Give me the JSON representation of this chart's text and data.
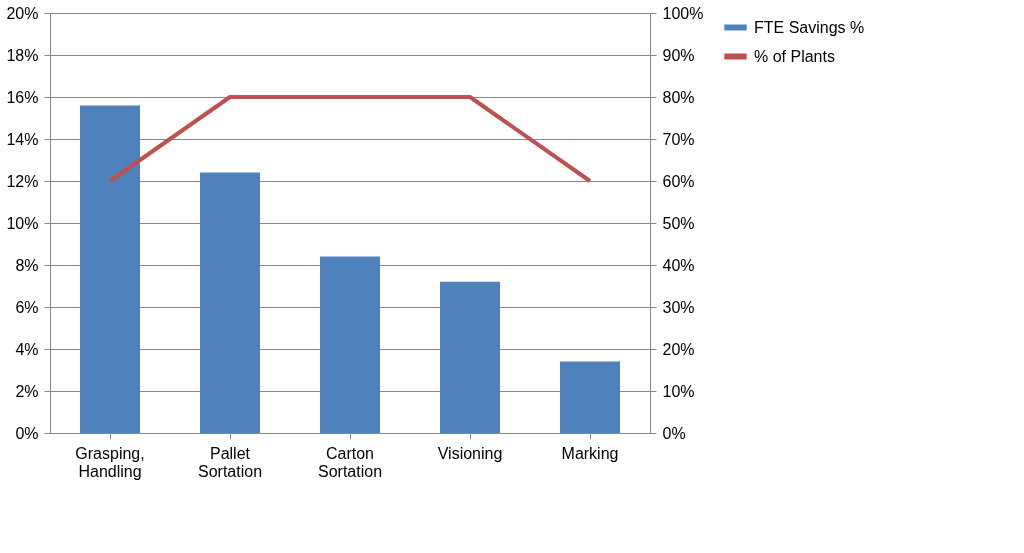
{
  "chart_data": {
    "type": "bar",
    "categories": [
      "Grasping, Handling",
      "Pallet Sortation",
      "Carton Sortation",
      "Visioning",
      "Marking"
    ],
    "series": [
      {
        "name": "FTE Savings %",
        "color": "#4f81bd",
        "values": [
          15.6,
          12.4,
          8.4,
          7.2,
          3.4
        ]
      },
      {
        "name": "% of Plants",
        "type": "line",
        "axis": "y2",
        "color": "#c0504d",
        "values": [
          60,
          80,
          80,
          80,
          60
        ]
      }
    ],
    "ylim": [
      0,
      20
    ],
    "yticks": [
      {
        "value": 0,
        "label": "0%"
      },
      {
        "value": 2,
        "label": "2%"
      },
      {
        "value": 4,
        "label": "4%"
      },
      {
        "value": 6,
        "label": "6%"
      },
      {
        "value": 8,
        "label": "8%"
      },
      {
        "value": 10,
        "label": "10%"
      },
      {
        "value": 12,
        "label": "12%"
      },
      {
        "value": 14,
        "label": "14%"
      },
      {
        "value": 16,
        "label": "16%"
      },
      {
        "value": 18,
        "label": "18%"
      },
      {
        "value": 20,
        "label": "20%"
      }
    ],
    "y2lim": [
      0,
      100
    ],
    "y2ticks": [
      {
        "value": 0,
        "label": "0%"
      },
      {
        "value": 10,
        "label": "10%"
      },
      {
        "value": 20,
        "label": "20%"
      },
      {
        "value": 30,
        "label": "30%"
      },
      {
        "value": 40,
        "label": "40%"
      },
      {
        "value": 50,
        "label": "50%"
      },
      {
        "value": 60,
        "label": "60%"
      },
      {
        "value": 70,
        "label": "70%"
      },
      {
        "value": 80,
        "label": "80%"
      },
      {
        "value": 90,
        "label": "90%"
      },
      {
        "value": 100,
        "label": "100%"
      }
    ],
    "grid": "y",
    "legend": "right",
    "marker": "none",
    "line_style": "solid"
  }
}
